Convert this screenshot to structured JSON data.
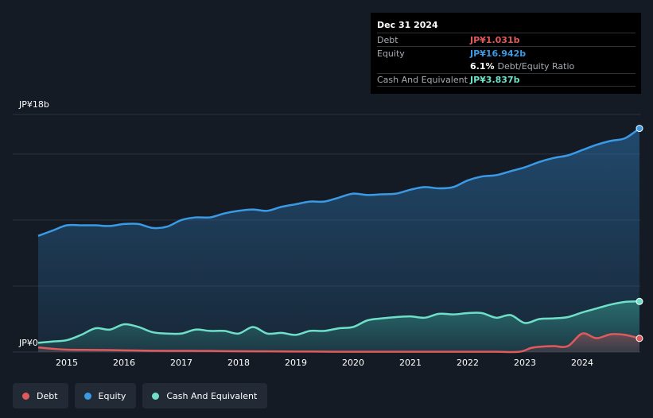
{
  "colors": {
    "debt": "#e05a5c",
    "equity": "#3a9ae6",
    "cash": "#6ee0c8",
    "background": "#151b24"
  },
  "tooltip": {
    "date": "Dec 31 2024",
    "debt_label": "Debt",
    "debt_value": "JP¥1.031b",
    "equity_label": "Equity",
    "equity_value": "JP¥16.942b",
    "ratio_value": "6.1%",
    "ratio_label": "Debt/Equity Ratio",
    "cash_label": "Cash And Equivalent",
    "cash_value": "JP¥3.837b"
  },
  "legend": {
    "debt": "Debt",
    "equity": "Equity",
    "cash": "Cash And Equivalent"
  },
  "chart_data": {
    "type": "area",
    "title": "",
    "xlabel": "",
    "ylabel": "",
    "ylim": [
      0,
      18
    ],
    "xlim": [
      2014.5,
      2025.0
    ],
    "y_tick_labels": [
      {
        "value": 18,
        "label": "JP¥18b"
      },
      {
        "value": 0,
        "label": "JP¥0"
      }
    ],
    "x_ticks": [
      2015,
      2016,
      2017,
      2018,
      2019,
      2020,
      2021,
      2022,
      2023,
      2024
    ],
    "x_tick_labels": [
      "2015",
      "2016",
      "2017",
      "2018",
      "2019",
      "2020",
      "2021",
      "2022",
      "2023",
      "2024"
    ],
    "units": "JP¥ billions",
    "series": [
      {
        "name": "Equity",
        "key": "equity",
        "points": [
          [
            2014.5,
            8.8
          ],
          [
            2014.75,
            9.2
          ],
          [
            2015.0,
            9.6
          ],
          [
            2015.25,
            9.6
          ],
          [
            2015.5,
            9.6
          ],
          [
            2015.75,
            9.55
          ],
          [
            2016.0,
            9.7
          ],
          [
            2016.25,
            9.7
          ],
          [
            2016.5,
            9.4
          ],
          [
            2016.75,
            9.5
          ],
          [
            2017.0,
            10.0
          ],
          [
            2017.25,
            10.2
          ],
          [
            2017.5,
            10.2
          ],
          [
            2017.75,
            10.5
          ],
          [
            2018.0,
            10.7
          ],
          [
            2018.25,
            10.8
          ],
          [
            2018.5,
            10.7
          ],
          [
            2018.75,
            11.0
          ],
          [
            2019.0,
            11.2
          ],
          [
            2019.25,
            11.4
          ],
          [
            2019.5,
            11.4
          ],
          [
            2019.75,
            11.7
          ],
          [
            2020.0,
            12.0
          ],
          [
            2020.25,
            11.9
          ],
          [
            2020.5,
            11.95
          ],
          [
            2020.75,
            12.0
          ],
          [
            2021.0,
            12.3
          ],
          [
            2021.25,
            12.5
          ],
          [
            2021.5,
            12.4
          ],
          [
            2021.75,
            12.5
          ],
          [
            2022.0,
            13.0
          ],
          [
            2022.25,
            13.3
          ],
          [
            2022.5,
            13.4
          ],
          [
            2022.75,
            13.7
          ],
          [
            2023.0,
            14.0
          ],
          [
            2023.25,
            14.4
          ],
          [
            2023.5,
            14.7
          ],
          [
            2023.75,
            14.9
          ],
          [
            2024.0,
            15.3
          ],
          [
            2024.25,
            15.7
          ],
          [
            2024.5,
            16.0
          ],
          [
            2024.75,
            16.2
          ],
          [
            2025.0,
            16.942
          ]
        ]
      },
      {
        "name": "Cash And Equivalent",
        "key": "cash",
        "points": [
          [
            2014.5,
            0.7
          ],
          [
            2014.75,
            0.8
          ],
          [
            2015.0,
            0.9
          ],
          [
            2015.25,
            1.3
          ],
          [
            2015.5,
            1.8
          ],
          [
            2015.75,
            1.7
          ],
          [
            2016.0,
            2.1
          ],
          [
            2016.25,
            1.9
          ],
          [
            2016.5,
            1.5
          ],
          [
            2016.75,
            1.4
          ],
          [
            2017.0,
            1.4
          ],
          [
            2017.25,
            1.7
          ],
          [
            2017.5,
            1.6
          ],
          [
            2017.75,
            1.6
          ],
          [
            2018.0,
            1.4
          ],
          [
            2018.25,
            1.9
          ],
          [
            2018.5,
            1.4
          ],
          [
            2018.75,
            1.45
          ],
          [
            2019.0,
            1.3
          ],
          [
            2019.25,
            1.6
          ],
          [
            2019.5,
            1.6
          ],
          [
            2019.75,
            1.8
          ],
          [
            2020.0,
            1.9
          ],
          [
            2020.25,
            2.4
          ],
          [
            2020.5,
            2.55
          ],
          [
            2020.75,
            2.65
          ],
          [
            2021.0,
            2.7
          ],
          [
            2021.25,
            2.6
          ],
          [
            2021.5,
            2.9
          ],
          [
            2021.75,
            2.85
          ],
          [
            2022.0,
            2.95
          ],
          [
            2022.25,
            2.95
          ],
          [
            2022.5,
            2.6
          ],
          [
            2022.75,
            2.8
          ],
          [
            2023.0,
            2.2
          ],
          [
            2023.25,
            2.5
          ],
          [
            2023.5,
            2.55
          ],
          [
            2023.75,
            2.65
          ],
          [
            2024.0,
            3.0
          ],
          [
            2024.25,
            3.3
          ],
          [
            2024.5,
            3.6
          ],
          [
            2024.75,
            3.8
          ],
          [
            2025.0,
            3.837
          ]
        ]
      },
      {
        "name": "Debt",
        "key": "debt",
        "points": [
          [
            2014.5,
            0.35
          ],
          [
            2014.75,
            0.25
          ],
          [
            2015.0,
            0.18
          ],
          [
            2015.5,
            0.16
          ],
          [
            2016.0,
            0.13
          ],
          [
            2016.5,
            0.1
          ],
          [
            2017.0,
            0.09
          ],
          [
            2017.5,
            0.08
          ],
          [
            2018.0,
            0.06
          ],
          [
            2018.5,
            0.05
          ],
          [
            2019.0,
            0.04
          ],
          [
            2019.5,
            0.03
          ],
          [
            2020.0,
            0.02
          ],
          [
            2020.5,
            0.02
          ],
          [
            2021.0,
            0.02
          ],
          [
            2021.5,
            0.02
          ],
          [
            2022.0,
            0.02
          ],
          [
            2022.5,
            0.02
          ],
          [
            2022.9,
            0.02
          ],
          [
            2023.1,
            0.3
          ],
          [
            2023.25,
            0.4
          ],
          [
            2023.5,
            0.45
          ],
          [
            2023.75,
            0.45
          ],
          [
            2024.0,
            1.4
          ],
          [
            2024.25,
            1.05
          ],
          [
            2024.5,
            1.35
          ],
          [
            2024.75,
            1.3
          ],
          [
            2025.0,
            1.031
          ]
        ]
      }
    ]
  }
}
